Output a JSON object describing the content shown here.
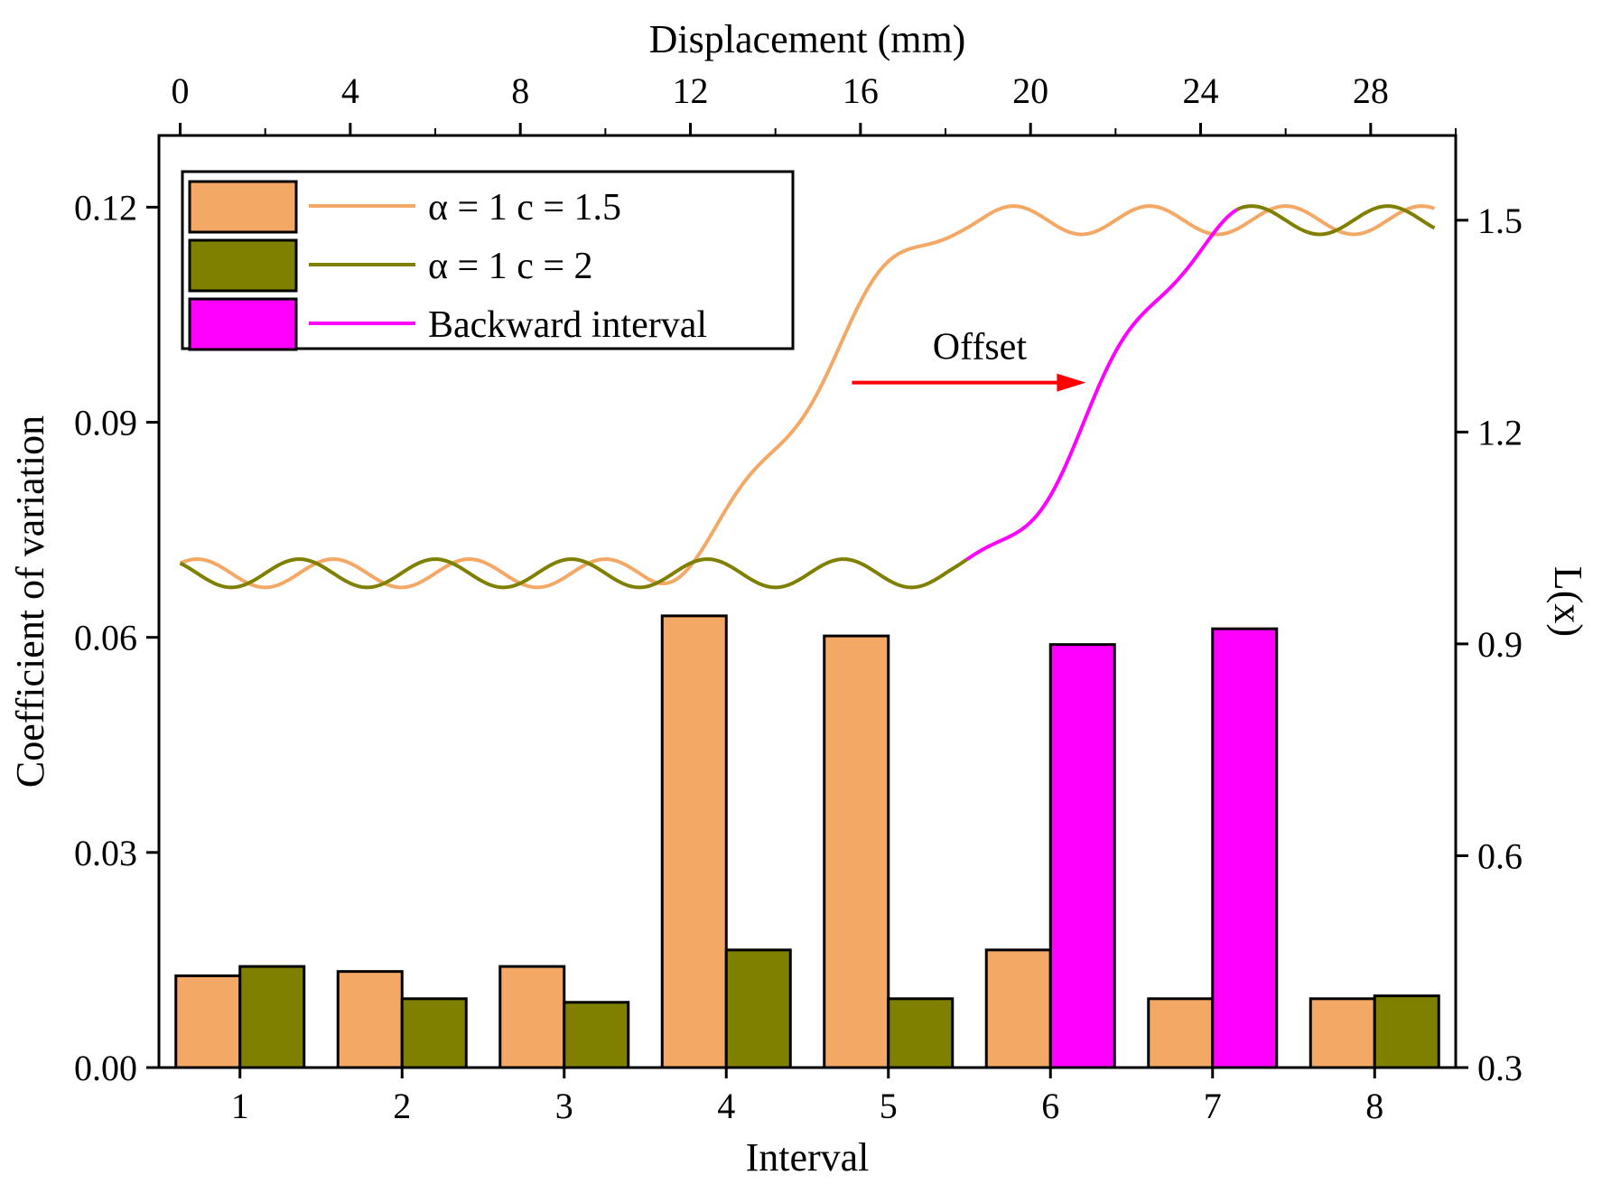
{
  "chart_data": {
    "type": "bar",
    "xlabel": "Interval",
    "ylabel": "Coefficient of variation",
    "x2label": "Displacement (mm)",
    "y2label": "L(x)",
    "categories": [
      "1",
      "2",
      "3",
      "4",
      "5",
      "6",
      "7",
      "8"
    ],
    "ylim": [
      0,
      0.13
    ],
    "yticks": [
      "0.00",
      "0.03",
      "0.06",
      "0.09",
      "0.12"
    ],
    "y2lim": [
      0.3,
      1.62
    ],
    "y2ticks": [
      "0.3",
      "0.6",
      "0.9",
      "1.2",
      "1.5"
    ],
    "x2lim": [
      -0.5,
      30
    ],
    "x2ticks": [
      "0",
      "4",
      "8",
      "12",
      "16",
      "20",
      "24",
      "28"
    ],
    "series": [
      {
        "name": "α = 1 c = 1.5",
        "color": "#F4A865",
        "values": [
          0.0128,
          0.0134,
          0.0141,
          0.063,
          0.0602,
          0.0164,
          0.0096,
          0.0096
        ]
      },
      {
        "name": "α = 1 c = 2",
        "color": "#808000",
        "values": [
          0.0141,
          0.0096,
          0.0091,
          0.0164,
          0.0096,
          null,
          null,
          0.01
        ]
      },
      {
        "name": "Backward interval",
        "color": "#FF00FF",
        "values": [
          null,
          null,
          null,
          null,
          null,
          0.059,
          0.0612,
          null
        ]
      }
    ],
    "lines": [
      {
        "name": "α = 1 c = 1.5",
        "color": "#F4A865",
        "low": 1.0,
        "high": 1.5,
        "amplitude": 0.02,
        "period": 3.2,
        "phase": 0.4,
        "transition_start": 11.0,
        "transition_end": 18.5,
        "x_start": 0,
        "x_end": 29.5
      },
      {
        "name": "α = 1 c = 2",
        "color": "#808000",
        "magenta_color": "#FF00FF",
        "low": 1.0,
        "high": 1.5,
        "amplitude": 0.02,
        "period": 3.2,
        "phase": 1.2,
        "transition_start": 18.2,
        "transition_end": 25.0,
        "x_start": 0,
        "x_end": 29.5
      }
    ],
    "annotation": {
      "text": "Offset",
      "color": "#FF0000",
      "arrow_x": [
        15.8,
        21.3
      ],
      "arrow_y": 1.27
    },
    "legend": {
      "position": "top-left",
      "entries": [
        "α = 1 c = 1.5",
        "α = 1 c = 2",
        "Backward interval"
      ]
    },
    "grid": false
  }
}
